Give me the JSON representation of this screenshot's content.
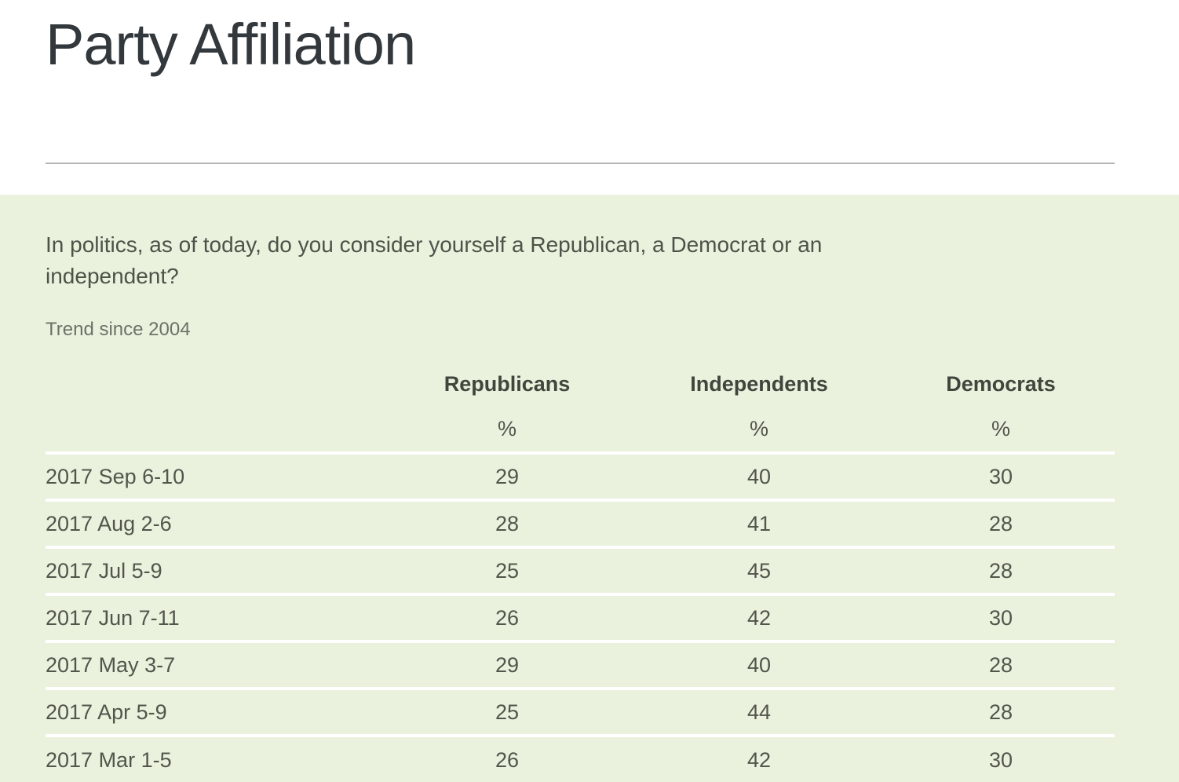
{
  "chart_data": {
    "type": "table",
    "title": "Party Affiliation",
    "question": "In politics, as of today, do you consider yourself a Republican, a Democrat or an independent?",
    "subtitle": "Trend since 2004",
    "columns": [
      "Republicans",
      "Independents",
      "Democrats"
    ],
    "unit": "%",
    "rows": [
      {
        "date": "2017 Sep 6-10",
        "values": [
          29,
          40,
          30
        ]
      },
      {
        "date": "2017 Aug 2-6",
        "values": [
          28,
          41,
          28
        ]
      },
      {
        "date": "2017 Jul 5-9",
        "values": [
          25,
          45,
          28
        ]
      },
      {
        "date": "2017 Jun 7-11",
        "values": [
          26,
          42,
          30
        ]
      },
      {
        "date": "2017 May 3-7",
        "values": [
          29,
          40,
          28
        ]
      },
      {
        "date": "2017 Apr 5-9",
        "values": [
          25,
          44,
          28
        ]
      },
      {
        "date": "2017 Mar 1-5",
        "values": [
          26,
          42,
          30
        ]
      }
    ]
  },
  "colors": {
    "section_background": "#eaf1dd",
    "row_divider": "#ffffff",
    "header_divider": "#b3b5b7",
    "title_text": "#33383c",
    "body_text": "#51564b"
  }
}
